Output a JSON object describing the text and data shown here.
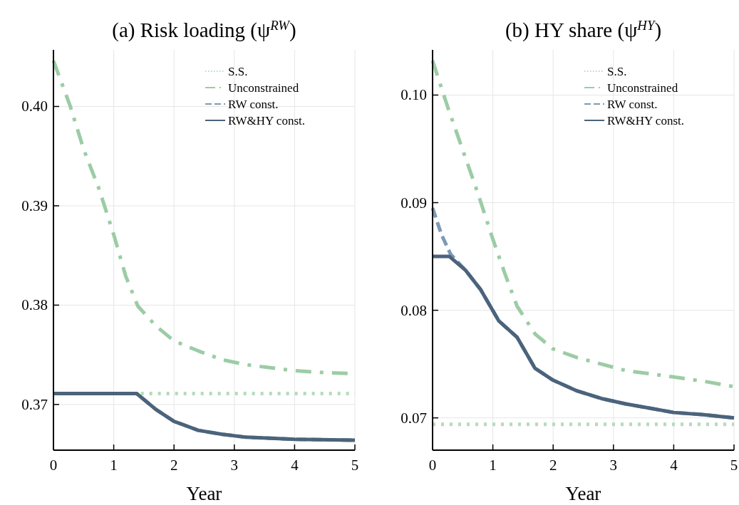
{
  "chart_data": [
    {
      "type": "line",
      "title": "(a) Risk loading (ψ$^{RW}$)",
      "xlabel": "Year",
      "xlim": [
        0,
        5
      ],
      "xticks": [
        0,
        1,
        2,
        3,
        4,
        5
      ],
      "ylim": [
        0.3654,
        0.4057
      ],
      "yticks": [
        0.37,
        0.38,
        0.39,
        {
          "value": 0.4,
          "label": "0.40"
        }
      ],
      "grid": true,
      "legend": "top right",
      "series": [
        {
          "name": "S.S.",
          "color": "#b5dbbd",
          "line_style": "dotted",
          "x": [
            1.45,
            5
          ],
          "values": [
            0.3711,
            0.3711
          ]
        },
        {
          "name": "Unconstrained",
          "color": "#9ccca5",
          "line_style": "dashdot",
          "x": [
            0,
            0.28,
            0.5,
            0.75,
            1,
            1.2,
            1.4,
            1.7,
            2,
            2.4,
            2.8,
            3.2,
            3.6,
            4,
            4.5,
            5
          ],
          "values": [
            0.4046,
            0.4,
            0.3957,
            0.3918,
            0.3871,
            0.3829,
            0.3799,
            0.3779,
            0.3764,
            0.3754,
            0.3745,
            0.374,
            0.3737,
            0.3734,
            0.3732,
            0.3731
          ]
        },
        {
          "name": "RW const.",
          "color": "#7d9ab3",
          "line_style": "dashed",
          "x": [
            0,
            1.38,
            1.7,
            2,
            2.4,
            2.8,
            3.2,
            3.6,
            4,
            5
          ],
          "values": [
            0.3711,
            0.3711,
            0.3695,
            0.3683,
            0.3674,
            0.367,
            0.3667,
            0.3666,
            0.3665,
            0.3664
          ]
        },
        {
          "name": "RW&HY const.",
          "color": "#4b637b",
          "line_style": "solid",
          "x": [
            0,
            1.38,
            1.7,
            2,
            2.4,
            2.8,
            3.2,
            3.6,
            4,
            5
          ],
          "values": [
            0.3711,
            0.3711,
            0.3695,
            0.3683,
            0.3674,
            0.367,
            0.3667,
            0.3666,
            0.3665,
            0.3664
          ]
        }
      ]
    },
    {
      "type": "line",
      "title": "(b) HY share (ψ$^{HY}$)",
      "xlabel": "Year",
      "xlim": [
        0,
        5
      ],
      "xticks": [
        0,
        1,
        2,
        3,
        4,
        5
      ],
      "ylim": [
        0.067,
        0.1042
      ],
      "yticks": [
        0.07,
        0.08,
        0.09,
        {
          "value": 0.1,
          "label": "0.10"
        }
      ],
      "grid": true,
      "legend": "top right",
      "series": [
        {
          "name": "S.S.",
          "color": "#b5dbbd",
          "line_style": "dotted",
          "x": [
            0,
            5
          ],
          "values": [
            0.0694,
            0.0694
          ]
        },
        {
          "name": "Unconstrained",
          "color": "#9ccca5",
          "line_style": "dashdot",
          "x": [
            0,
            0.25,
            0.5,
            0.75,
            1,
            1.2,
            1.4,
            1.7,
            2,
            2.4,
            2.8,
            3.2,
            3.6,
            4,
            4.5,
            5
          ],
          "values": [
            0.1032,
            0.0989,
            0.0949,
            0.0909,
            0.0866,
            0.0834,
            0.0804,
            0.0778,
            0.0764,
            0.0756,
            0.075,
            0.0744,
            0.0741,
            0.0738,
            0.0734,
            0.0729
          ]
        },
        {
          "name": "RW const.",
          "color": "#7d9ab3",
          "line_style": "dashed",
          "x": [
            0,
            0.15,
            0.3,
            0.55,
            0.8,
            1.1,
            1.4,
            1.7,
            2,
            2.4,
            2.8,
            3.2,
            3.6,
            4,
            4.5,
            5
          ],
          "values": [
            0.0895,
            0.087,
            0.0852,
            0.0837,
            0.0819,
            0.079,
            0.0775,
            0.0746,
            0.0735,
            0.0725,
            0.0718,
            0.0713,
            0.0709,
            0.0705,
            0.0703,
            0.07
          ]
        },
        {
          "name": "RW&HY const.",
          "color": "#4b637b",
          "line_style": "solid",
          "x": [
            0,
            0.28,
            0.55,
            0.8,
            1.1,
            1.4,
            1.7,
            2,
            2.4,
            2.8,
            3.2,
            3.6,
            4,
            4.5,
            5
          ],
          "values": [
            0.085,
            0.085,
            0.0837,
            0.0819,
            0.079,
            0.0775,
            0.0746,
            0.0735,
            0.0725,
            0.0718,
            0.0713,
            0.0709,
            0.0705,
            0.0703,
            0.07
          ]
        }
      ]
    }
  ]
}
